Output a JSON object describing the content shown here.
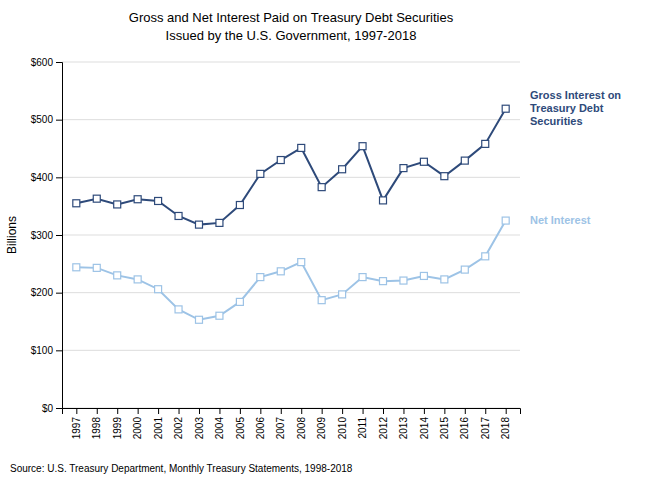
{
  "chart_data": {
    "type": "line",
    "title": "Gross and Net Interest Paid on Treasury Debt Securities",
    "subtitle": "Issued by the U.S. Government, 1997-2018",
    "y_label": "Billions",
    "annotations": [
      "Source: U.S. Treasury Department,  Monthly Treasury Statements, 1998-2018"
    ],
    "x": [
      1997,
      1998,
      1999,
      2000,
      2001,
      2002,
      2003,
      2004,
      2005,
      2006,
      2007,
      2008,
      2009,
      2010,
      2011,
      2012,
      2013,
      2014,
      2015,
      2016,
      2017,
      2018
    ],
    "xlim": [
      1996.3,
      2018.7
    ],
    "xticks": [
      1997,
      1998,
      1999,
      2000,
      2001,
      2002,
      2003,
      2004,
      2005,
      2006,
      2007,
      2008,
      2009,
      2010,
      2011,
      2012,
      2013,
      2014,
      2015,
      2016,
      2017,
      2018
    ],
    "ylim": [
      0,
      600
    ],
    "yticks": [
      {
        "value": 0,
        "label": "$0"
      },
      {
        "value": 100,
        "label": "$100"
      },
      {
        "value": 200,
        "label": "$200"
      },
      {
        "value": 300,
        "label": "$300"
      },
      {
        "value": 400,
        "label": "$400"
      },
      {
        "value": 500,
        "label": "$500"
      },
      {
        "value": 600,
        "label": "$600"
      }
    ],
    "grid": true,
    "marker": "square",
    "series": [
      {
        "name": "Gross Interest on\nTreasury Debt\nSecurities",
        "color": "#2E4A7A",
        "values": [
          355,
          363,
          353,
          362,
          359,
          333,
          318,
          321,
          352,
          406,
          430,
          451,
          383,
          414,
          454,
          360,
          416,
          427,
          402,
          429,
          458,
          519
        ]
      },
      {
        "name": "Net Interest",
        "color": "#9DC3E6",
        "values": [
          244,
          243,
          230,
          223,
          206,
          171,
          153,
          160,
          184,
          227,
          237,
          253,
          187,
          197,
          227,
          220,
          221,
          229,
          223,
          240,
          263,
          325
        ]
      }
    ]
  }
}
